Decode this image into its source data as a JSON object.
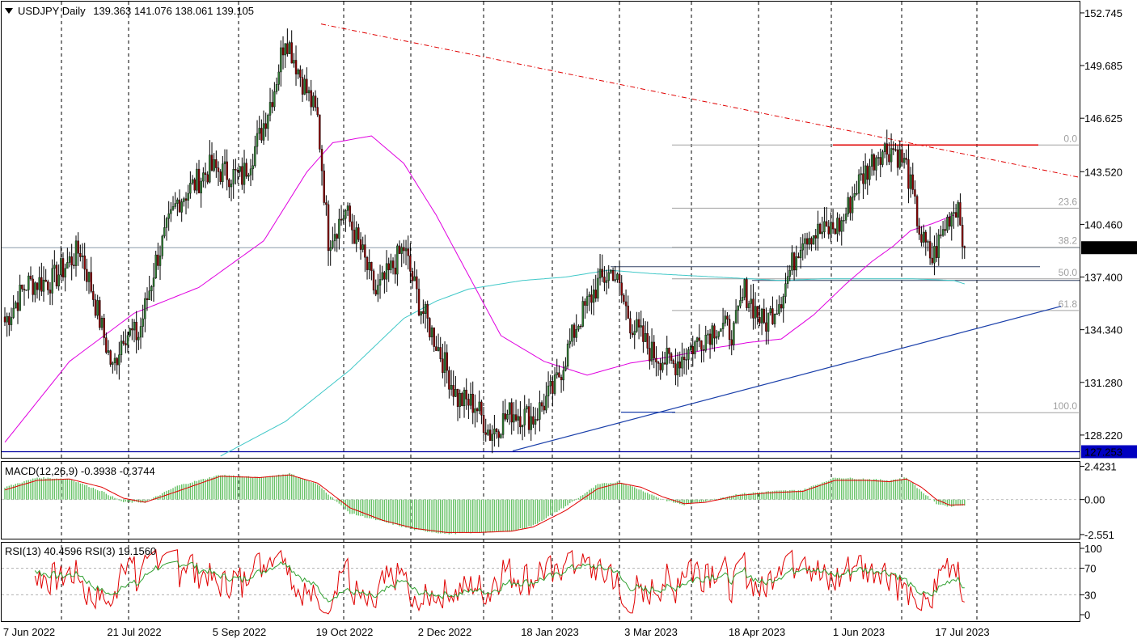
{
  "main_header": {
    "symbol": "USDJPY",
    "timeframe": "Daily",
    "ohlc": "139.363 141.076 138.061 139.105"
  },
  "macd_header": "MACD(12,26,9) -0.3938 -0.3744",
  "rsi_header": "RSI(13) 40.4596  RSI(3) 19.1560",
  "colors": {
    "bull": "#2e7d32",
    "bear": "#8b0000",
    "ma_fast": "#e000e0",
    "ma_slow": "#40c8c8",
    "trend_down": "#e00000",
    "trend_up": "#1a3faa",
    "macd_hist": "#66c266",
    "macd_signal": "#e00000",
    "rsi_fast": "#e00000",
    "rsi_slow": "#30a030",
    "price_label_bg": "#000000",
    "blue_label_bg": "#0000c0"
  },
  "chart_data": [
    {
      "type": "candlestick",
      "title": "USDJPY Daily",
      "y_axis_ticks": [
        "152.745",
        "149.685",
        "146.625",
        "143.520",
        "140.460",
        "137.400",
        "134.340",
        "131.280",
        "128.220"
      ],
      "ylim": [
        126.9,
        153.4
      ],
      "x_axis_ticks": [
        "7 Jun 2022",
        "21 Jul 2022",
        "5 Sep 2022",
        "19 Oct 2022",
        "2 Dec 2022",
        "18 Jan 2023",
        "3 Mar 2023",
        "18 Apr 2023",
        "1 Jun 2023",
        "17 Jul 2023"
      ],
      "last_price": "139.105",
      "support_line_label": "127.253",
      "support_line_value": 127.253,
      "price_anchors": [
        [
          0,
          134.8
        ],
        [
          10,
          137.0
        ],
        [
          22,
          137.2
        ],
        [
          35,
          139.0
        ],
        [
          40,
          136.8
        ],
        [
          45,
          134.4
        ],
        [
          50,
          132.0
        ],
        [
          55,
          134.2
        ],
        [
          62,
          134.0
        ],
        [
          70,
          138.3
        ],
        [
          80,
          141.8
        ],
        [
          95,
          143.7
        ],
        [
          110,
          143.2
        ],
        [
          118,
          145.5
        ],
        [
          125,
          148.4
        ],
        [
          130,
          151.5
        ],
        [
          138,
          148.8
        ],
        [
          145,
          146.6
        ],
        [
          150,
          139.6
        ],
        [
          158,
          141.2
        ],
        [
          165,
          139.0
        ],
        [
          172,
          136.4
        ],
        [
          178,
          137.6
        ],
        [
          185,
          139.1
        ],
        [
          192,
          135.9
        ],
        [
          200,
          133.6
        ],
        [
          210,
          130.3
        ],
        [
          218,
          130.0
        ],
        [
          225,
          128.3
        ],
        [
          235,
          129.6
        ],
        [
          245,
          129.2
        ],
        [
          255,
          131.0
        ],
        [
          265,
          134.6
        ],
        [
          275,
          137.0
        ],
        [
          282,
          137.8
        ],
        [
          290,
          134.8
        ],
        [
          300,
          133.0
        ],
        [
          310,
          132.3
        ],
        [
          320,
          133.5
        ],
        [
          330,
          134.6
        ],
        [
          338,
          134.2
        ],
        [
          343,
          136.6
        ],
        [
          352,
          134.6
        ],
        [
          360,
          136.3
        ],
        [
          370,
          139.9
        ],
        [
          380,
          140.0
        ],
        [
          388,
          140.5
        ],
        [
          395,
          142.7
        ],
        [
          405,
          144.7
        ],
        [
          412,
          144.9
        ],
        [
          418,
          143.8
        ],
        [
          425,
          139.6
        ],
        [
          430,
          138.4
        ],
        [
          438,
          141.0
        ],
        [
          442,
          141.7
        ],
        [
          445,
          139.105
        ]
      ],
      "levels": [
        {
          "label": "152.745",
          "value": 152.745
        },
        {
          "label": "139.105",
          "value": 139.105
        }
      ],
      "fibonacci": {
        "high": 145.07,
        "low": 129.52,
        "levels": [
          "0.0",
          "23.6",
          "38.2",
          "50.0",
          "61.8",
          "100.0"
        ],
        "ratios": [
          0,
          0.236,
          0.382,
          0.5,
          0.618,
          1.0
        ]
      },
      "horizontal_levels": [
        {
          "name": "resistance",
          "value": 145.07
        },
        {
          "name": "neckline",
          "value": 138.0
        },
        {
          "name": "low-line",
          "value": 129.55
        }
      ],
      "trendlines": [
        {
          "name": "down-trend",
          "from": [
            130,
            152.1
          ],
          "to": [
            445,
            143.2
          ]
        },
        {
          "name": "up-trend",
          "from": [
            224,
            127.3
          ],
          "to": [
            445,
            135.7
          ]
        }
      ],
      "moving_averages": [
        {
          "name": "MA fast",
          "anchors": [
            [
              0,
              127.8
            ],
            [
              30,
              132.5
            ],
            [
              60,
              135.3
            ],
            [
              90,
              136.8
            ],
            [
              120,
              139.5
            ],
            [
              140,
              143.5
            ],
            [
              152,
              145.2
            ],
            [
              170,
              145.6
            ],
            [
              185,
              144.0
            ],
            [
              200,
              141.0
            ],
            [
              215,
              137.5
            ],
            [
              230,
              134.0
            ],
            [
              250,
              132.5
            ],
            [
              270,
              131.7
            ],
            [
              290,
              132.4
            ],
            [
              310,
              132.8
            ],
            [
              330,
              133.3
            ],
            [
              345,
              133.6
            ],
            [
              360,
              133.8
            ],
            [
              375,
              135.2
            ],
            [
              390,
              137.0
            ],
            [
              402,
              138.3
            ],
            [
              412,
              139.2
            ],
            [
              420,
              140.1
            ],
            [
              430,
              140.5
            ],
            [
              440,
              141.0
            ]
          ]
        },
        {
          "name": "MA slow",
          "anchors": [
            [
              100,
              127.0
            ],
            [
              130,
              129.0
            ],
            [
              160,
              132.0
            ],
            [
              185,
              135.0
            ],
            [
              200,
              136.0
            ],
            [
              215,
              136.7
            ],
            [
              240,
              137.2
            ],
            [
              260,
              137.4
            ],
            [
              280,
              137.8
            ],
            [
              300,
              137.6
            ],
            [
              330,
              137.4
            ],
            [
              360,
              137.2
            ],
            [
              380,
              137.3
            ],
            [
              400,
              137.3
            ],
            [
              420,
              137.3
            ],
            [
              440,
              137.2
            ],
            [
              445,
              137.0
            ]
          ]
        }
      ]
    },
    {
      "type": "histogram",
      "title": "MACD(12,26,9) -0.3938 -0.3744",
      "y_axis_ticks": [
        "2.4231",
        "0.00",
        "-2.551"
      ],
      "ylim": [
        -2.85,
        2.75
      ],
      "macd_anchors": [
        [
          0,
          0.9
        ],
        [
          15,
          1.6
        ],
        [
          30,
          1.5
        ],
        [
          45,
          0.6
        ],
        [
          55,
          -0.2
        ],
        [
          65,
          -0.2
        ],
        [
          80,
          1.0
        ],
        [
          100,
          1.8
        ],
        [
          118,
          1.6
        ],
        [
          132,
          1.9
        ],
        [
          145,
          1.1
        ],
        [
          160,
          -1.0
        ],
        [
          175,
          -1.6
        ],
        [
          190,
          -2.2
        ],
        [
          205,
          -2.5
        ],
        [
          220,
          -2.4
        ],
        [
          235,
          -2.3
        ],
        [
          245,
          -1.9
        ],
        [
          260,
          -0.5
        ],
        [
          275,
          1.1
        ],
        [
          285,
          1.3
        ],
        [
          295,
          0.7
        ],
        [
          305,
          0.0
        ],
        [
          315,
          -0.4
        ],
        [
          325,
          -0.1
        ],
        [
          340,
          0.4
        ],
        [
          355,
          0.6
        ],
        [
          370,
          0.7
        ],
        [
          385,
          1.6
        ],
        [
          400,
          1.5
        ],
        [
          410,
          1.4
        ],
        [
          418,
          1.6
        ],
        [
          425,
          0.6
        ],
        [
          432,
          -0.3
        ],
        [
          438,
          -0.5
        ],
        [
          445,
          -0.39
        ]
      ],
      "signal_anchors": [
        [
          0,
          0.7
        ],
        [
          15,
          1.4
        ],
        [
          30,
          1.5
        ],
        [
          45,
          0.9
        ],
        [
          55,
          0.1
        ],
        [
          65,
          -0.2
        ],
        [
          80,
          0.6
        ],
        [
          100,
          1.7
        ],
        [
          118,
          1.6
        ],
        [
          132,
          1.8
        ],
        [
          145,
          1.2
        ],
        [
          160,
          -0.6
        ],
        [
          175,
          -1.5
        ],
        [
          190,
          -2.1
        ],
        [
          205,
          -2.4
        ],
        [
          220,
          -2.4
        ],
        [
          235,
          -2.3
        ],
        [
          245,
          -2.0
        ],
        [
          260,
          -0.8
        ],
        [
          275,
          0.8
        ],
        [
          285,
          1.2
        ],
        [
          295,
          0.9
        ],
        [
          305,
          0.2
        ],
        [
          315,
          -0.3
        ],
        [
          325,
          -0.2
        ],
        [
          340,
          0.3
        ],
        [
          355,
          0.5
        ],
        [
          370,
          0.6
        ],
        [
          385,
          1.4
        ],
        [
          400,
          1.4
        ],
        [
          410,
          1.3
        ],
        [
          418,
          1.5
        ],
        [
          425,
          0.9
        ],
        [
          432,
          0.0
        ],
        [
          438,
          -0.4
        ],
        [
          445,
          -0.37
        ]
      ]
    },
    {
      "type": "line",
      "title": "RSI(13) 40.4596  RSI(3) 19.1560",
      "y_axis_ticks": [
        "100",
        "70",
        "30",
        "0"
      ],
      "ylim": [
        0,
        100
      ],
      "guide_levels": [
        70,
        30
      ],
      "rsi13_last": 40.4596,
      "rsi3_last": 19.156
    }
  ]
}
